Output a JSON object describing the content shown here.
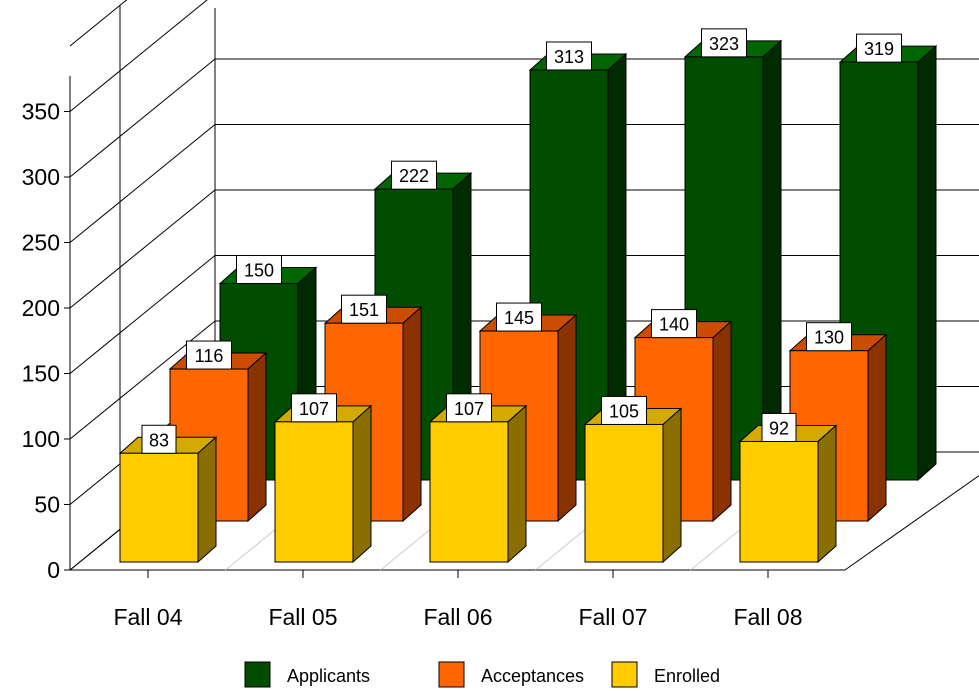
{
  "chart_data": {
    "type": "bar",
    "categories": [
      "Fall 04",
      "Fall 05",
      "Fall 06",
      "Fall 07",
      "Fall 08"
    ],
    "series": [
      {
        "name": "Applicants",
        "values": [
          150,
          222,
          313,
          323,
          319
        ]
      },
      {
        "name": "Acceptances",
        "values": [
          116,
          151,
          145,
          140,
          130
        ]
      },
      {
        "name": "Enrolled",
        "values": [
          83,
          107,
          107,
          105,
          92
        ]
      }
    ],
    "yticks": [
      "0",
      "50",
      "100",
      "150",
      "200",
      "250",
      "300",
      "350"
    ],
    "ylim": [
      0,
      400
    ],
    "title": "",
    "xlabel": "",
    "ylabel": "",
    "legend_position": "bottom",
    "grid": true,
    "bar_style": "3d",
    "colors": {
      "Applicants": {
        "front": "#004d00",
        "side": "#002a00",
        "top": "#006600"
      },
      "Acceptances": {
        "front": "#ff6600",
        "side": "#8a3300",
        "top": "#cc4c00"
      },
      "Enrolled": {
        "front": "#ffcc00",
        "side": "#8a6e00",
        "top": "#d4aa00"
      }
    }
  }
}
